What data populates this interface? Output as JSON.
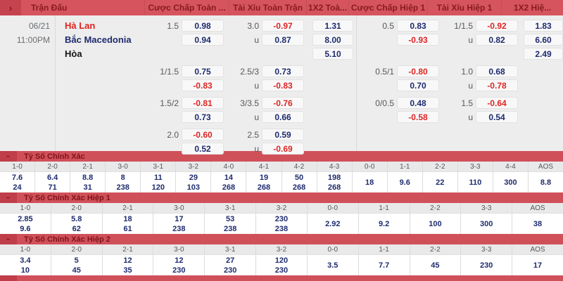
{
  "header": {
    "chevron": "›",
    "columns": [
      "Trận Đấu",
      "Cược Chấp Toàn ...",
      "Tài Xỉu Toàn Trận",
      "1X2 Toà...",
      "Cược Chấp Hiệp 1",
      "Tài Xỉu Hiệp 1",
      "1X2 Hiệ..."
    ]
  },
  "icons": {
    "chevron_right": "›",
    "chevron_down": "›"
  },
  "colors": {
    "header_red": "#d5545e",
    "header_icon_red": "#c5434e",
    "header_text_dark_red": "#8a1a20",
    "odds_positive_navy": "#1e2b6e",
    "odds_negative_red": "#dd2524",
    "home_team_red": "#e0231f",
    "away_team_navy": "#1e2b6e"
  },
  "match": {
    "date": "06/21",
    "time": "11:00PM",
    "home": "Hà Lan",
    "away": "Bắc Macedonia",
    "draw_label": "Hòa"
  },
  "odds_groups": [
    {
      "cc": {
        "line": "1.5",
        "v1": "0.98",
        "v2": "0.94"
      },
      "tx": {
        "line": "3.0",
        "v1": "-0.97",
        "u": "u",
        "v2": "0.87"
      },
      "x12": [
        "1.31",
        "8.00",
        "5.10"
      ],
      "cch1": {
        "line": "0.5",
        "v1": "0.83",
        "v2": "-0.93"
      },
      "txh1": {
        "line": "1/1.5",
        "v1": "-0.92",
        "u": "u",
        "v2": "0.82"
      },
      "x12h1": [
        "1.83",
        "6.60",
        "2.49"
      ]
    },
    {
      "cc": {
        "line": "1/1.5",
        "v1": "0.75",
        "v2": "-0.83"
      },
      "tx": {
        "line": "2.5/3",
        "v1": "0.73",
        "u": "u",
        "v2": "-0.83"
      },
      "x12": null,
      "cch1": {
        "line": "0.5/1",
        "v1": "-0.80",
        "v2": "0.70"
      },
      "txh1": {
        "line": "1.0",
        "v1": "0.68",
        "u": "u",
        "v2": "-0.78"
      },
      "x12h1": null
    },
    {
      "cc": {
        "line": "1.5/2",
        "v1": "-0.81",
        "v2": "0.73"
      },
      "tx": {
        "line": "3/3.5",
        "v1": "-0.76",
        "u": "u",
        "v2": "0.66"
      },
      "x12": null,
      "cch1": {
        "line": "0/0.5",
        "v1": "0.48",
        "v2": "-0.58"
      },
      "txh1": {
        "line": "1.5",
        "v1": "-0.64",
        "u": "u",
        "v2": "0.54"
      },
      "x12h1": null
    },
    {
      "cc": {
        "line": "2.0",
        "v1": "-0.60",
        "v2": "0.52"
      },
      "tx": {
        "line": "2.5",
        "v1": "0.59",
        "u": "u",
        "v2": "-0.69"
      },
      "x12": null,
      "cch1": null,
      "txh1": null,
      "x12h1": null
    }
  ],
  "score_sections": [
    {
      "title": "Tỷ Số Chính Xác",
      "columns": [
        {
          "score": "1-0",
          "values": [
            "7.6",
            "24"
          ]
        },
        {
          "score": "2-0",
          "values": [
            "6.4",
            "71"
          ]
        },
        {
          "score": "2-1",
          "values": [
            "8.8",
            "31"
          ]
        },
        {
          "score": "3-0",
          "values": [
            "8",
            "238"
          ]
        },
        {
          "score": "3-1",
          "values": [
            "11",
            "120"
          ]
        },
        {
          "score": "3-2",
          "values": [
            "29",
            "103"
          ]
        },
        {
          "score": "4-0",
          "values": [
            "14",
            "268"
          ]
        },
        {
          "score": "4-1",
          "values": [
            "19",
            "268"
          ]
        },
        {
          "score": "4-2",
          "values": [
            "50",
            "268"
          ]
        },
        {
          "score": "4-3",
          "values": [
            "198",
            "268"
          ]
        },
        {
          "score": "0-0",
          "values": [
            "18"
          ]
        },
        {
          "score": "1-1",
          "values": [
            "9.6"
          ]
        },
        {
          "score": "2-2",
          "values": [
            "22"
          ]
        },
        {
          "score": "3-3",
          "values": [
            "110"
          ]
        },
        {
          "score": "4-4",
          "values": [
            "300"
          ]
        },
        {
          "score": "AOS",
          "values": [
            "8.8"
          ]
        }
      ]
    },
    {
      "title": "Tỷ Số Chính Xác Hiệp 1",
      "columns": [
        {
          "score": "1-0",
          "values": [
            "2.85",
            "9.6"
          ]
        },
        {
          "score": "2-0",
          "values": [
            "5.8",
            "62"
          ]
        },
        {
          "score": "2-1",
          "values": [
            "18",
            "61"
          ]
        },
        {
          "score": "3-0",
          "values": [
            "17",
            "238"
          ]
        },
        {
          "score": "3-1",
          "values": [
            "53",
            "238"
          ]
        },
        {
          "score": "3-2",
          "values": [
            "230",
            "238"
          ]
        },
        {
          "score": "0-0",
          "values": [
            "2.92"
          ]
        },
        {
          "score": "1-1",
          "values": [
            "9.2"
          ]
        },
        {
          "score": "2-2",
          "values": [
            "100"
          ]
        },
        {
          "score": "3-3",
          "values": [
            "300"
          ]
        },
        {
          "score": "AOS",
          "values": [
            "38"
          ]
        }
      ]
    },
    {
      "title": "Tỷ Số Chính Xác Hiệp 2",
      "columns": [
        {
          "score": "1-0",
          "values": [
            "3.4",
            "10"
          ]
        },
        {
          "score": "2-0",
          "values": [
            "5",
            "45"
          ]
        },
        {
          "score": "2-1",
          "values": [
            "12",
            "35"
          ]
        },
        {
          "score": "3-0",
          "values": [
            "12",
            "230"
          ]
        },
        {
          "score": "3-1",
          "values": [
            "27",
            "230"
          ]
        },
        {
          "score": "3-2",
          "values": [
            "120",
            "230"
          ]
        },
        {
          "score": "0-0",
          "values": [
            "3.5"
          ]
        },
        {
          "score": "1-1",
          "values": [
            "7.7"
          ]
        },
        {
          "score": "2-2",
          "values": [
            "45"
          ]
        },
        {
          "score": "3-3",
          "values": [
            "230"
          ]
        },
        {
          "score": "AOS",
          "values": [
            "17"
          ]
        }
      ]
    }
  ]
}
